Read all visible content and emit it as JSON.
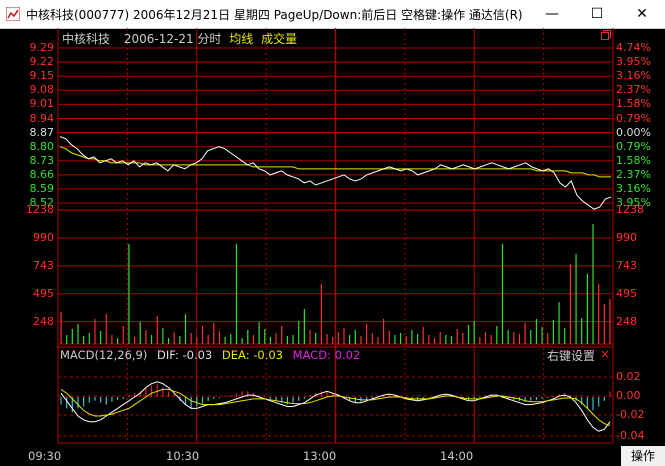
{
  "window": {
    "title": "中核科技(000777) 2006年12月21日 星期四 PageUp/Down:前后日 空格键:操作 通达信(R)",
    "minimize": "—",
    "maximize": "☐",
    "close": "✕"
  },
  "header": {
    "stock_name": "中核科技",
    "date": "2006-12-21",
    "minute_label": "分时",
    "avg_label": "均线",
    "vol_label": "成交量"
  },
  "price_axis": {
    "left": [
      "9.29",
      "9.22",
      "9.15",
      "9.08",
      "9.01",
      "8.94",
      "8.87",
      "8.80",
      "8.73",
      "8.66",
      "8.59",
      "8.52"
    ],
    "right": [
      "4.74%",
      "3.95%",
      "3.16%",
      "2.37%",
      "1.58%",
      "0.79%",
      "0.00%",
      "0.79%",
      "1.58%",
      "2.37%",
      "3.16%",
      "3.95%"
    ],
    "prev_close": 8.87
  },
  "volume_axis": {
    "left": [
      "1238",
      "990",
      "743",
      "495",
      "248"
    ],
    "right": [
      "1238",
      "990",
      "743",
      "495",
      "248"
    ]
  },
  "macd": {
    "title": "MACD(12,26,9)",
    "dif": "DIF: -0.03",
    "dea": "DEA: -0.03",
    "macd": "MACD: 0.02",
    "settings_label": "右键设置",
    "close_label": "×",
    "axis": [
      "0.02",
      "0.00",
      "-0.02",
      "-0.04"
    ]
  },
  "time_axis": {
    "labels": [
      "09:30",
      "10:30",
      "13:00",
      "14:00"
    ]
  },
  "op_button": "操作",
  "colors": {
    "background": "#000000",
    "grid": "#b00000",
    "up": "#ff3030",
    "down": "#30e030",
    "price_line": "#ffffff",
    "avg_line": "#e6e600",
    "macd_pos": "#e02020",
    "macd_neg": "#40c0d0",
    "magenta": "#e020e0"
  },
  "chart_data": {
    "type": "line",
    "price": [
      8.85,
      8.84,
      8.81,
      8.79,
      8.76,
      8.74,
      8.75,
      8.72,
      8.73,
      8.74,
      8.72,
      8.73,
      8.71,
      8.73,
      8.7,
      8.72,
      8.71,
      8.72,
      8.7,
      8.68,
      8.71,
      8.7,
      8.69,
      8.71,
      8.72,
      8.74,
      8.78,
      8.79,
      8.8,
      8.79,
      8.77,
      8.75,
      8.73,
      8.71,
      8.72,
      8.69,
      8.68,
      8.66,
      8.67,
      8.68,
      8.66,
      8.65,
      8.64,
      8.62,
      8.63,
      8.61,
      8.62,
      8.63,
      8.64,
      8.65,
      8.66,
      8.64,
      8.63,
      8.64,
      8.66,
      8.67,
      8.68,
      8.69,
      8.7,
      8.69,
      8.68,
      8.69,
      8.68,
      8.66,
      8.67,
      8.68,
      8.69,
      8.71,
      8.7,
      8.69,
      8.7,
      8.71,
      8.7,
      8.69,
      8.7,
      8.71,
      8.72,
      8.71,
      8.7,
      8.69,
      8.7,
      8.71,
      8.72,
      8.7,
      8.69,
      8.68,
      8.69,
      8.67,
      8.62,
      8.6,
      8.63,
      8.56,
      8.53,
      8.51,
      8.49,
      8.5,
      8.54,
      8.55
    ],
    "average": [
      8.8,
      8.79,
      8.77,
      8.76,
      8.75,
      8.74,
      8.74,
      8.73,
      8.73,
      8.72,
      8.72,
      8.72,
      8.72,
      8.72,
      8.72,
      8.71,
      8.71,
      8.71,
      8.71,
      8.71,
      8.71,
      8.71,
      8.71,
      8.71,
      8.71,
      8.71,
      8.71,
      8.71,
      8.71,
      8.71,
      8.71,
      8.71,
      8.71,
      8.71,
      8.7,
      8.7,
      8.7,
      8.7,
      8.7,
      8.7,
      8.7,
      8.7,
      8.69,
      8.69,
      8.69,
      8.69,
      8.69,
      8.69,
      8.69,
      8.69,
      8.69,
      8.69,
      8.69,
      8.69,
      8.69,
      8.69,
      8.69,
      8.69,
      8.69,
      8.69,
      8.69,
      8.69,
      8.69,
      8.69,
      8.69,
      8.69,
      8.69,
      8.69,
      8.69,
      8.69,
      8.69,
      8.69,
      8.69,
      8.69,
      8.69,
      8.69,
      8.69,
      8.69,
      8.69,
      8.69,
      8.69,
      8.69,
      8.69,
      8.69,
      8.68,
      8.68,
      8.68,
      8.68,
      8.68,
      8.68,
      8.67,
      8.67,
      8.67,
      8.66,
      8.66,
      8.65,
      8.65,
      8.65
    ],
    "volume": [
      320,
      90,
      150,
      200,
      80,
      110,
      250,
      130,
      300,
      90,
      60,
      180,
      1000,
      70,
      220,
      140,
      90,
      280,
      160,
      60,
      120,
      80,
      300,
      110,
      70,
      180,
      90,
      210,
      130,
      70,
      100,
      1000,
      60,
      140,
      90,
      220,
      150,
      70,
      110,
      180,
      80,
      90,
      230,
      350,
      140,
      110,
      600,
      100,
      70,
      120,
      160,
      90,
      140,
      80,
      200,
      110,
      70,
      250,
      130,
      90,
      110,
      80,
      140,
      100,
      170,
      90,
      60,
      120,
      90,
      80,
      150,
      110,
      190,
      230,
      70,
      120,
      90,
      180,
      1000,
      140,
      120,
      100,
      210,
      140,
      250,
      170,
      110,
      240,
      420,
      160,
      800,
      900,
      260,
      700,
      1200,
      600,
      400,
      450
    ],
    "macd_hist": [
      -0.008,
      -0.012,
      -0.016,
      -0.012,
      -0.01,
      -0.006,
      -0.004,
      -0.006,
      -0.008,
      -0.005,
      -0.003,
      -0.002,
      0.002,
      0.004,
      0.006,
      0.01,
      0.012,
      0.014,
      0.01,
      0.006,
      0.003,
      -0.004,
      -0.008,
      -0.012,
      -0.01,
      -0.007,
      -0.004,
      -0.002,
      -0.001,
      0.001,
      0.002,
      0.004,
      0.006,
      0.006,
      0.004,
      0.002,
      0.001,
      -0.002,
      -0.004,
      -0.006,
      -0.008,
      -0.006,
      -0.004,
      -0.002,
      0.002,
      0.004,
      0.006,
      0.006,
      0.004,
      0.002,
      -0.002,
      -0.004,
      -0.006,
      -0.005,
      -0.003,
      -0.001,
      0.001,
      0.002,
      0.003,
      0.002,
      0.001,
      -0.001,
      -0.002,
      -0.003,
      -0.002,
      -0.001,
      0.001,
      0.002,
      0.002,
      0.001,
      -0.001,
      -0.002,
      -0.003,
      -0.002,
      -0.001,
      0.001,
      0.002,
      0.001,
      -0.001,
      -0.002,
      -0.003,
      -0.004,
      -0.005,
      -0.004,
      -0.003,
      -0.002,
      -0.001,
      0.001,
      0.003,
      0.004,
      0.002,
      -0.004,
      -0.008,
      -0.012,
      -0.014,
      -0.01,
      -0.004,
      0.006
    ],
    "dif": [
      0.004,
      -0.004,
      -0.012,
      -0.02,
      -0.024,
      -0.026,
      -0.026,
      -0.024,
      -0.02,
      -0.016,
      -0.012,
      -0.008,
      -0.004,
      0.0,
      0.004,
      0.01,
      0.014,
      0.016,
      0.014,
      0.01,
      0.004,
      -0.002,
      -0.008,
      -0.012,
      -0.012,
      -0.01,
      -0.008,
      -0.008,
      -0.007,
      -0.006,
      -0.004,
      -0.002,
      0.0,
      0.002,
      0.002,
      0.0,
      -0.002,
      -0.004,
      -0.006,
      -0.008,
      -0.01,
      -0.01,
      -0.008,
      -0.006,
      -0.002,
      0.002,
      0.004,
      0.006,
      0.004,
      0.002,
      -0.001,
      -0.004,
      -0.006,
      -0.006,
      -0.004,
      -0.002,
      0.0,
      0.002,
      0.003,
      0.002,
      0.0,
      -0.002,
      -0.003,
      -0.004,
      -0.003,
      -0.002,
      0.0,
      0.002,
      0.003,
      0.002,
      0.0,
      -0.002,
      -0.004,
      -0.004,
      -0.002,
      0.0,
      0.002,
      0.002,
      0.0,
      -0.002,
      -0.004,
      -0.006,
      -0.008,
      -0.008,
      -0.007,
      -0.006,
      -0.004,
      -0.002,
      0.001,
      0.002,
      0.0,
      -0.006,
      -0.014,
      -0.024,
      -0.032,
      -0.036,
      -0.034,
      -0.026
    ],
    "dea": [
      0.008,
      0.004,
      -0.002,
      -0.008,
      -0.014,
      -0.018,
      -0.02,
      -0.02,
      -0.019,
      -0.018,
      -0.016,
      -0.014,
      -0.012,
      -0.008,
      -0.004,
      0.0,
      0.004,
      0.006,
      0.008,
      0.008,
      0.006,
      0.004,
      0.0,
      -0.004,
      -0.006,
      -0.008,
      -0.008,
      -0.008,
      -0.008,
      -0.007,
      -0.006,
      -0.005,
      -0.004,
      -0.003,
      -0.002,
      -0.002,
      -0.002,
      -0.003,
      -0.004,
      -0.005,
      -0.006,
      -0.007,
      -0.007,
      -0.007,
      -0.006,
      -0.004,
      -0.002,
      0.0,
      0.001,
      0.001,
      0.0,
      -0.001,
      -0.002,
      -0.003,
      -0.003,
      -0.003,
      -0.002,
      -0.001,
      0.0,
      0.0,
      0.0,
      -0.001,
      -0.002,
      -0.002,
      -0.002,
      -0.002,
      -0.001,
      0.0,
      0.001,
      0.001,
      0.0,
      -0.001,
      -0.002,
      -0.002,
      -0.002,
      -0.001,
      0.0,
      0.001,
      0.001,
      0.0,
      -0.001,
      -0.002,
      -0.004,
      -0.005,
      -0.005,
      -0.005,
      -0.004,
      -0.003,
      -0.002,
      -0.001,
      -0.001,
      -0.002,
      -0.006,
      -0.012,
      -0.018,
      -0.024,
      -0.028,
      -0.03
    ]
  }
}
